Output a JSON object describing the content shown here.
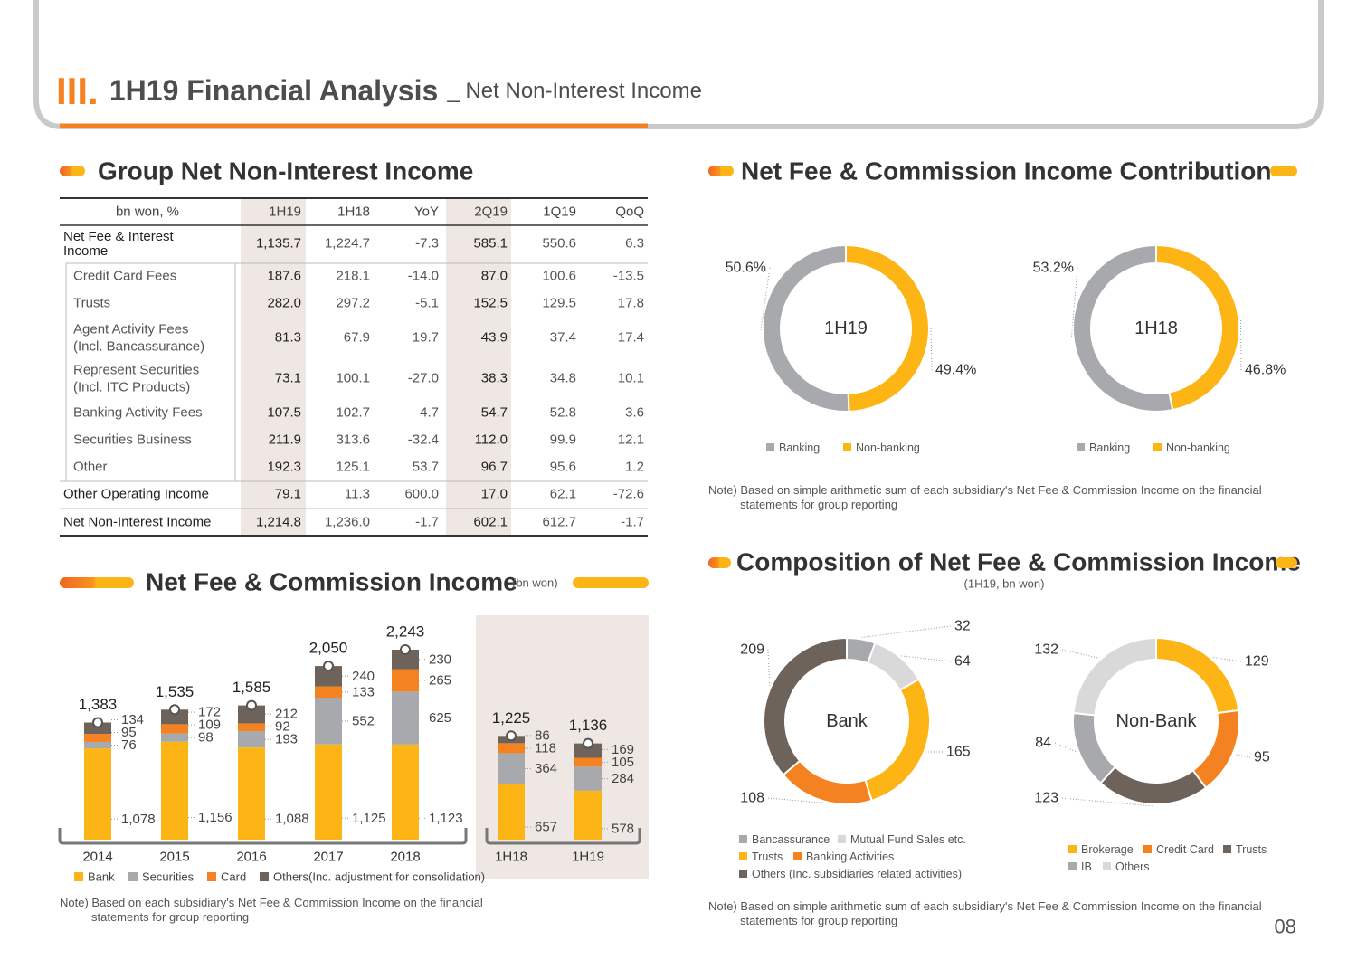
{
  "header": {
    "numeral": "III.",
    "title": "1H19 Financial Analysis",
    "subtitle": "_ Net Non-Interest Income"
  },
  "table": {
    "title": "Group Net Non-Interest Income",
    "columns": [
      "bn won, %",
      "1H19",
      "1H18",
      "YoY",
      "2Q19",
      "1Q19",
      "QoQ"
    ],
    "rows": [
      {
        "label": "Net Fee & Interest\nIncome",
        "cells": [
          "1,135.7",
          "1,224.7",
          "-7.3",
          "585.1",
          "550.6",
          "6.3"
        ]
      },
      {
        "label": "Credit Card Fees",
        "cells": [
          "187.6",
          "218.1",
          "-14.0",
          "87.0",
          "100.6",
          "-13.5"
        ]
      },
      {
        "label": "Trusts",
        "cells": [
          "282.0",
          "297.2",
          "-5.1",
          "152.5",
          "129.5",
          "17.8"
        ]
      },
      {
        "label": "Agent Activity Fees\n(Incl. Bancassurance)",
        "cells": [
          "81.3",
          "67.9",
          "19.7",
          "43.9",
          "37.4",
          "17.4"
        ]
      },
      {
        "label": "Represent Securities\n(Incl. ITC Products)",
        "cells": [
          "73.1",
          "100.1",
          "-27.0",
          "38.3",
          "34.8",
          "10.1"
        ]
      },
      {
        "label": "Banking Activity Fees",
        "cells": [
          "107.5",
          "102.7",
          "4.7",
          "54.7",
          "52.8",
          "3.6"
        ]
      },
      {
        "label": "Securities Business",
        "cells": [
          "211.9",
          "313.6",
          "-32.4",
          "112.0",
          "99.9",
          "12.1"
        ]
      },
      {
        "label": "Other",
        "cells": [
          "192.3",
          "125.1",
          "53.7",
          "96.7",
          "95.6",
          "1.2"
        ]
      },
      {
        "label": "Other Operating Income",
        "cells": [
          "79.1",
          "11.3",
          "600.0",
          "17.0",
          "62.1",
          "-72.6"
        ]
      },
      {
        "label": "Net Non-Interest Income",
        "cells": [
          "1,214.8",
          "1,236.0",
          "-1.7",
          "602.1",
          "612.7",
          "-1.7"
        ]
      }
    ]
  },
  "fee_chart": {
    "type": "bar",
    "stacked": true,
    "title": "Net Fee & Commission Income",
    "unit": "(bn won)",
    "categories": [
      "2014",
      "2015",
      "2016",
      "2017",
      "2018",
      "1H18",
      "1H19"
    ],
    "series": [
      {
        "name": "Bank",
        "color": "#fdb515",
        "values": [
          1078,
          1156,
          1088,
          1125,
          1123,
          657,
          578
        ],
        "value_labels": [
          "1,078",
          "1,156",
          "1,088",
          "1,125",
          "1,123",
          "657",
          "578"
        ]
      },
      {
        "name": "Securities",
        "color": "#a7a9ac",
        "values": [
          76,
          98,
          193,
          552,
          625,
          364,
          284
        ]
      },
      {
        "name": "Card",
        "color": "#f58220",
        "values": [
          95,
          109,
          92,
          133,
          265,
          118,
          105
        ]
      },
      {
        "name": "Others(Inc. adjustment for consolidation)",
        "color": "#6d635b",
        "values": [
          134,
          172,
          212,
          240,
          230,
          86,
          169
        ]
      }
    ],
    "totals": [
      1383,
      1535,
      1585,
      2050,
      2243,
      1225,
      1136
    ],
    "total_labels": [
      "1,383",
      "1,535",
      "1,585",
      "2,050",
      "2,243",
      "1,225",
      "1,136"
    ],
    "note": "Note) Based on each subsidiary's Net Fee & Commission Income on the financial\nstatements for group reporting"
  },
  "contribution": {
    "title": "Net Fee & Commission Income Contribution",
    "charts": [
      {
        "type": "pie",
        "center_label": "1H19",
        "direction": "counterclockwise",
        "categories": [
          "Banking",
          "Non-banking"
        ],
        "values": [
          50.6,
          49.4
        ],
        "value_labels": [
          "50.6%",
          "49.4%"
        ],
        "colors": [
          "#a7a9ac",
          "#fdb515"
        ]
      },
      {
        "type": "pie",
        "center_label": "1H18",
        "direction": "counterclockwise",
        "categories": [
          "Banking",
          "Non-banking"
        ],
        "values": [
          53.2,
          46.8
        ],
        "value_labels": [
          "53.2%",
          "46.8%"
        ],
        "colors": [
          "#a7a9ac",
          "#fdb515"
        ]
      }
    ],
    "note": "Note) Based on simple arithmetic sum of each subsidiary's Net Fee & Commission Income on the financial\nstatements for group reporting"
  },
  "composition": {
    "title": "Composition of Net Fee & Commission Income",
    "subtitle": "(1H19, bn won)",
    "charts": [
      {
        "type": "pie",
        "center_label": "Bank",
        "direction": "clockwise",
        "categories": [
          "Bancassurance",
          "Mutual Fund Sales etc.",
          "Trusts",
          "Banking Activities",
          "Others (Inc. subsidiaries related activities)"
        ],
        "values": [
          32,
          64,
          165,
          108,
          209
        ],
        "colors": [
          "#a7a9ac",
          "#d9d9d9",
          "#fdb515",
          "#f58220",
          "#6d635b"
        ]
      },
      {
        "type": "pie",
        "center_label": "Non-Bank",
        "direction": "clockwise",
        "categories": [
          "Brokerage",
          "Credit Card",
          "Trusts",
          "IB",
          "Others"
        ],
        "values": [
          129,
          95,
          123,
          84,
          132
        ],
        "colors": [
          "#fdb515",
          "#f58220",
          "#6d635b",
          "#a7a9ac",
          "#d9d9d9"
        ]
      }
    ],
    "note": "Note) Based on simple arithmetic sum of each subsidiary's Net Fee & Commission Income on the financial\nstatements for group reporting"
  },
  "page_number": "08"
}
